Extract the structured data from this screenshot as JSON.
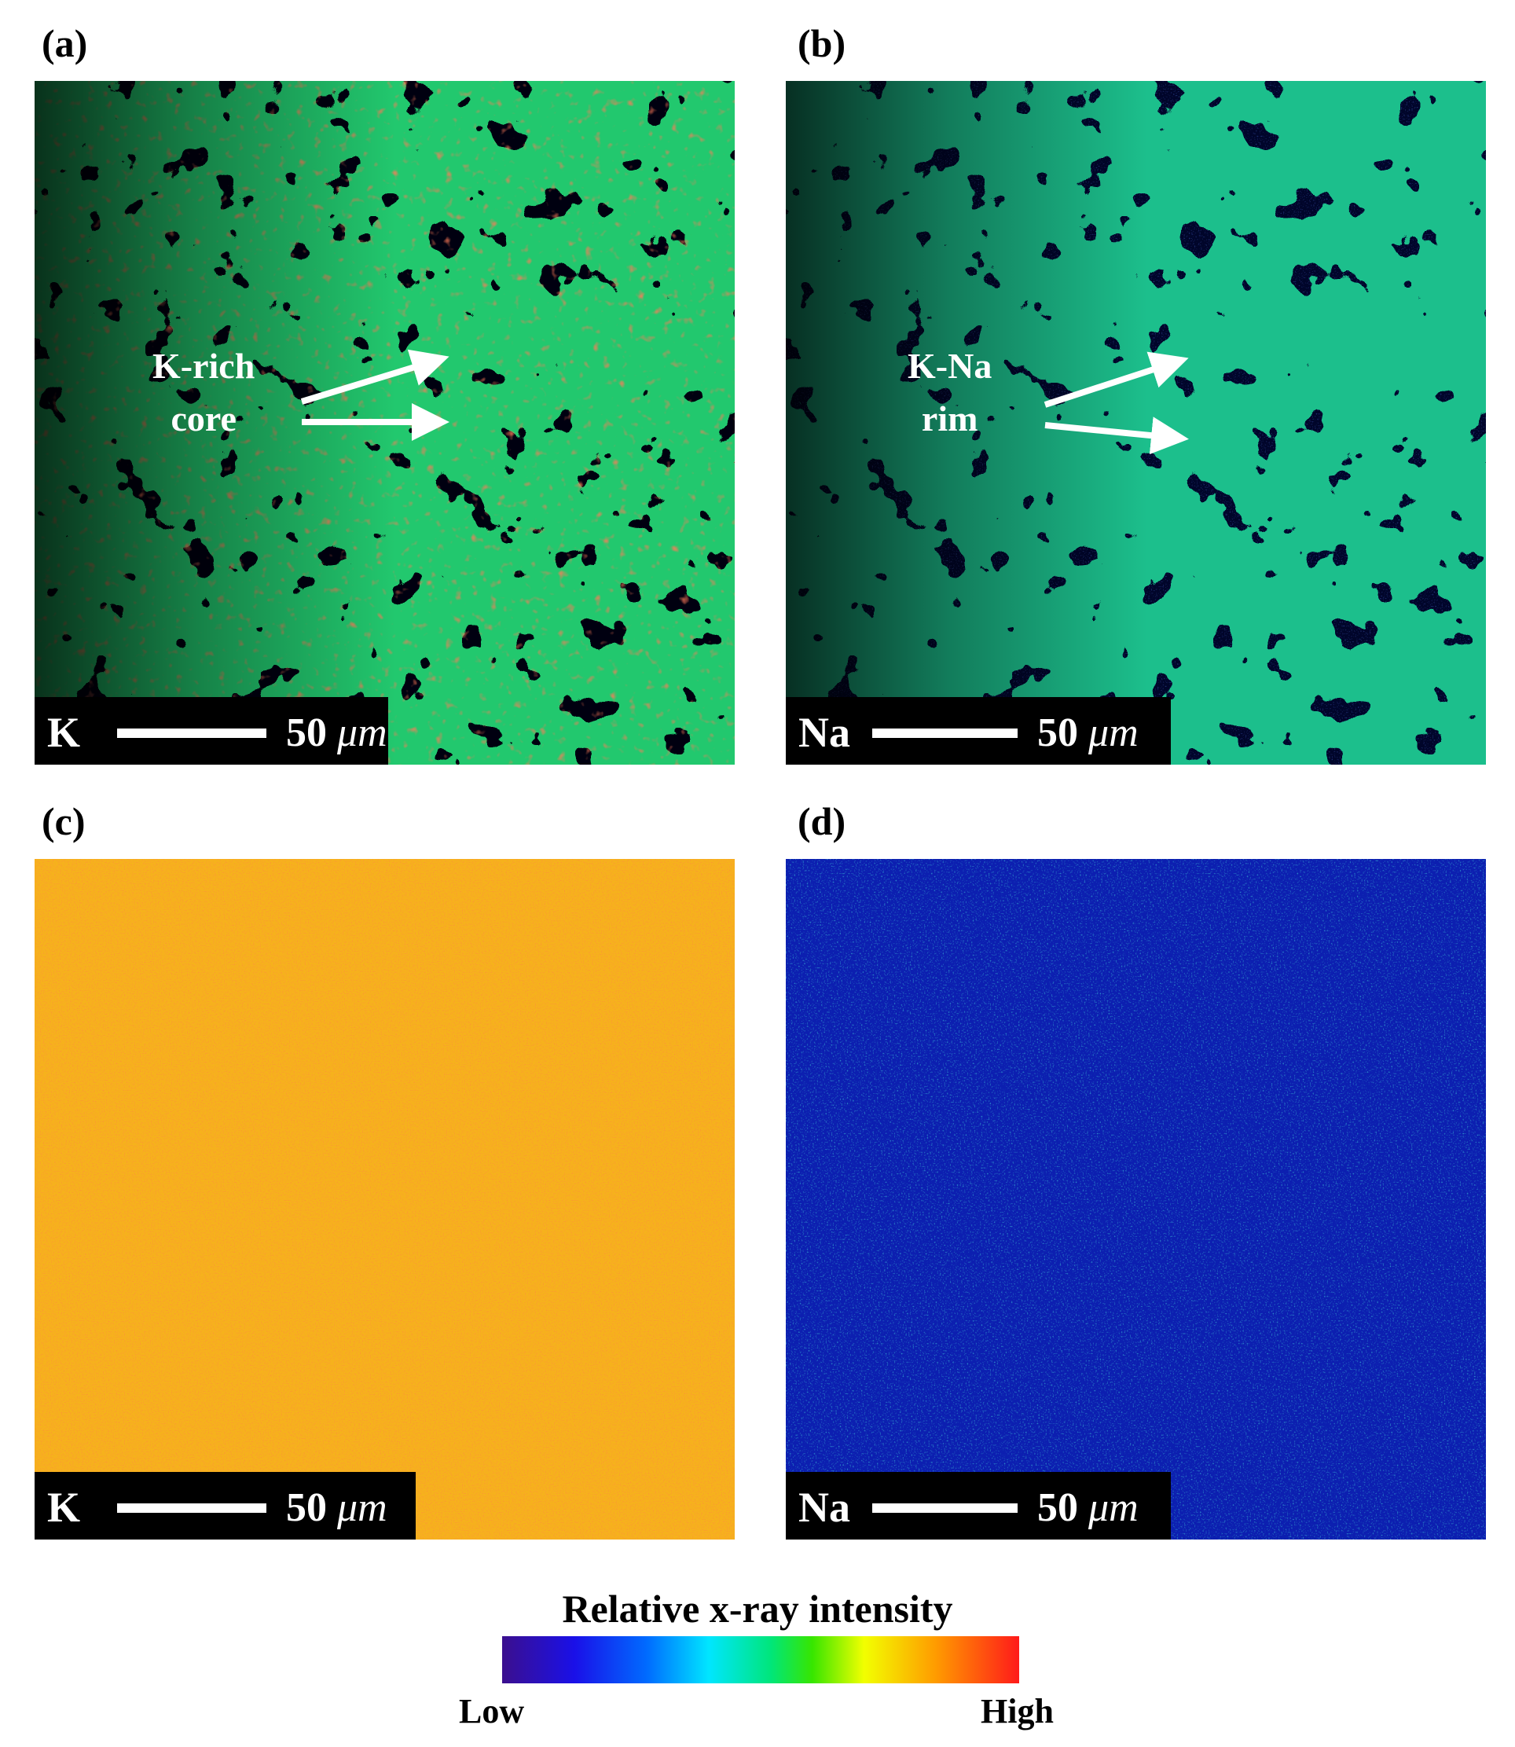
{
  "panels": [
    {
      "label": "(a)",
      "element": "K",
      "scale": "50",
      "unit": "μm",
      "annotation": [
        "K-rich",
        "core"
      ]
    },
    {
      "label": "(b)",
      "element": "Na",
      "scale": "50",
      "unit": "μm",
      "annotation": [
        "K-Na",
        "rim"
      ]
    },
    {
      "label": "(c)",
      "element": "K",
      "scale": "50",
      "unit": "μm"
    },
    {
      "label": "(d)",
      "element": "Na",
      "scale": "50",
      "unit": "μm"
    }
  ],
  "colorbar": {
    "title": "Relative x-ray intensity",
    "low": "Low",
    "high": "High"
  },
  "colors": {
    "background_low": "#000000",
    "blue": "#1a2bd8",
    "green": "#27e04a",
    "orange": "#ffa800",
    "red": "#ff2a1a"
  }
}
